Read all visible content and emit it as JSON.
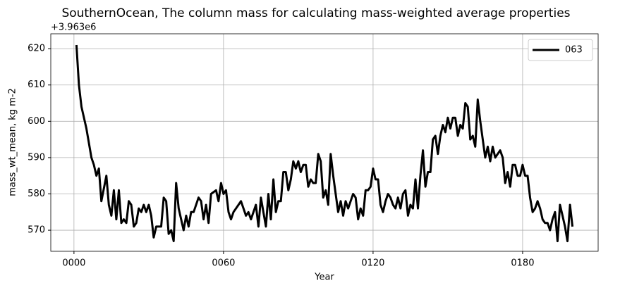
{
  "chart_data": {
    "type": "line",
    "title": "SouthernOcean, The column mass for calculating mass-weighted average properties",
    "xlabel": "Year",
    "ylabel": "mass_wt_mean, kg m-2",
    "offset_text": "+3.963e6",
    "x": [
      1,
      2,
      3,
      5,
      7,
      8,
      9,
      10,
      11,
      13,
      14,
      15,
      16,
      17,
      18,
      19,
      20,
      21,
      22,
      23,
      24,
      25,
      26,
      27,
      28,
      29,
      30,
      31,
      32,
      33,
      35,
      36,
      37,
      38,
      39,
      40,
      41,
      42,
      44,
      45,
      46,
      47,
      48,
      50,
      51,
      52,
      53,
      54,
      55,
      57,
      58,
      59,
      60,
      61,
      62,
      63,
      64,
      66,
      67,
      68,
      69,
      70,
      71,
      73,
      74,
      75,
      76,
      77,
      78,
      79,
      80,
      81,
      82,
      83,
      84,
      85,
      86,
      87,
      88,
      89,
      90,
      91,
      92,
      93,
      94,
      95,
      96,
      97,
      98,
      99,
      100,
      101,
      102,
      103,
      104,
      105,
      106,
      107,
      108,
      109,
      110,
      111,
      112,
      113,
      114,
      115,
      116,
      117,
      118,
      119,
      120,
      121,
      122,
      123,
      124,
      125,
      126,
      127,
      128,
      129,
      130,
      131,
      132,
      133,
      134,
      135,
      136,
      137,
      138,
      139,
      140,
      141,
      142,
      143,
      144,
      145,
      146,
      147,
      148,
      149,
      150,
      151,
      152,
      153,
      154,
      155,
      156,
      157,
      158,
      159,
      160,
      161,
      162,
      163,
      164,
      165,
      166,
      167,
      168,
      169,
      170,
      171,
      172,
      173,
      174,
      175,
      176,
      177,
      178,
      179,
      180,
      181,
      182,
      183,
      184,
      185,
      186,
      187,
      188,
      189,
      190,
      191,
      192,
      193,
      194,
      195,
      196,
      197,
      198,
      199,
      200
    ],
    "series": [
      {
        "name": "063",
        "color": "#000000",
        "values": [
          621,
          610,
          604,
          598,
          590,
          588,
          585,
          587,
          578,
          585,
          577,
          574,
          581,
          573,
          581,
          572,
          573,
          572,
          578,
          577,
          571,
          572,
          576,
          575,
          577,
          575,
          577,
          574,
          568,
          571,
          571,
          579,
          578,
          569,
          570,
          567,
          583,
          576,
          570,
          574,
          571,
          575,
          575,
          579,
          578,
          573,
          577,
          572,
          580,
          581,
          578,
          583,
          580,
          581,
          575,
          573,
          575,
          577,
          578,
          576,
          574,
          575,
          573,
          577,
          571,
          579,
          575,
          571,
          580,
          573,
          584,
          575,
          578,
          578,
          586,
          586,
          581,
          584,
          589,
          587,
          589,
          586,
          588,
          588,
          582,
          584,
          583,
          583,
          591,
          589,
          579,
          581,
          577,
          591,
          585,
          580,
          575,
          578,
          574,
          578,
          576,
          578,
          580,
          579,
          573,
          576,
          574,
          581,
          581,
          582,
          587,
          584,
          584,
          577,
          575,
          578,
          580,
          579,
          577,
          576,
          579,
          576,
          580,
          581,
          574,
          577,
          576,
          584,
          576,
          585,
          592,
          582,
          586,
          586,
          595,
          596,
          591,
          596,
          599,
          597,
          601,
          598,
          601,
          601,
          596,
          599,
          598,
          605,
          604,
          595,
          596,
          593,
          606,
          600,
          595,
          590,
          593,
          589,
          593,
          590,
          591,
          592,
          590,
          583,
          586,
          582,
          588,
          588,
          585,
          585,
          588,
          585,
          585,
          579,
          575,
          576,
          578,
          576,
          573,
          572,
          572,
          570,
          573,
          575,
          567,
          577,
          574,
          571,
          567,
          577,
          571
        ]
      }
    ],
    "xlim": [
      -9.3,
      210.3
    ],
    "xticks": [
      {
        "value": 0,
        "label": "0000"
      },
      {
        "value": 60,
        "label": "0060"
      },
      {
        "value": 120,
        "label": "0120"
      },
      {
        "value": 180,
        "label": "0180"
      }
    ],
    "ylim": [
      564.2,
      624.1
    ],
    "yticks": [
      570,
      580,
      590,
      600,
      610,
      620
    ],
    "grid": true,
    "legend": "upper right"
  }
}
